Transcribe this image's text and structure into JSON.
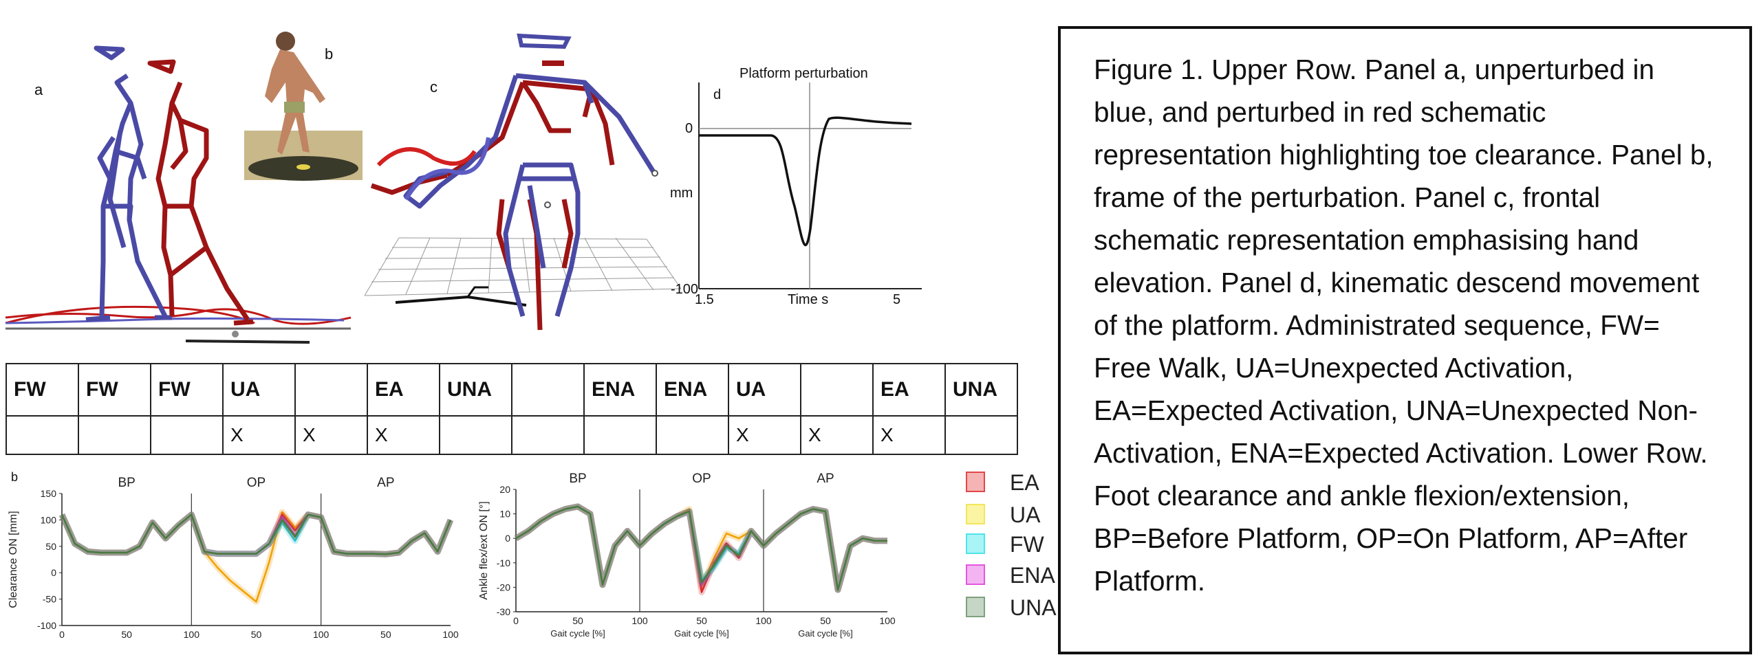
{
  "panels": {
    "a_label": "a",
    "b_label": "b",
    "c_label": "c",
    "d_label": "d",
    "lower_b_label": "b"
  },
  "platform_chart": {
    "title": "Platform perturbation",
    "ylabel": "mm",
    "xlabel": "Time s",
    "y_ticks": [
      "0",
      "-100"
    ],
    "x_ticks": [
      "1.5",
      "5"
    ]
  },
  "sequence_table": {
    "headers": [
      "FW",
      "FW",
      "FW",
      "UA",
      "",
      "EA",
      "UNA",
      "",
      "ENA",
      "ENA",
      "UA",
      "",
      "EA",
      "UNA"
    ],
    "marks": [
      "",
      "",
      "",
      "X",
      "X",
      "X",
      "",
      "",
      "",
      "",
      "X",
      "X",
      "X",
      ""
    ]
  },
  "chart_data": [
    {
      "type": "line",
      "title": "",
      "xlabel": "",
      "ylabel": "Clearance ON [mm]",
      "phases": [
        "BP",
        "OP",
        "AP"
      ],
      "phase_x_ticks": [
        [
          "0",
          "50",
          "100"
        ],
        [
          "50",
          "100"
        ],
        [
          "50",
          "100"
        ]
      ],
      "y_ticks": [
        "150",
        "100",
        "50",
        "0",
        "-50",
        "-100"
      ],
      "ylim": [
        -100,
        150
      ],
      "x": [
        0,
        10,
        20,
        30,
        40,
        50,
        60,
        70,
        80,
        90,
        100,
        110,
        120,
        130,
        140,
        150,
        160,
        170,
        180,
        190,
        200,
        210,
        220,
        230,
        240,
        250,
        260,
        270,
        280,
        290,
        300
      ],
      "series": [
        {
          "name": "EA",
          "values": [
            110,
            55,
            40,
            38,
            38,
            38,
            50,
            95,
            65,
            90,
            110,
            40,
            36,
            36,
            36,
            36,
            55,
            110,
            80,
            110,
            105,
            40,
            36,
            36,
            36,
            35,
            38,
            60,
            75,
            40,
            100
          ]
        },
        {
          "name": "UA",
          "values": [
            110,
            55,
            40,
            38,
            38,
            38,
            50,
            95,
            65,
            90,
            110,
            40,
            10,
            -15,
            -35,
            -55,
            20,
            115,
            85,
            110,
            105,
            40,
            36,
            36,
            36,
            35,
            38,
            60,
            75,
            40,
            100
          ]
        },
        {
          "name": "FW",
          "values": [
            110,
            55,
            40,
            38,
            38,
            38,
            50,
            95,
            65,
            90,
            110,
            40,
            36,
            36,
            36,
            36,
            55,
            95,
            60,
            110,
            105,
            40,
            36,
            36,
            36,
            35,
            38,
            60,
            75,
            40,
            100
          ]
        },
        {
          "name": "ENA",
          "values": [
            110,
            55,
            40,
            38,
            38,
            38,
            50,
            95,
            65,
            90,
            110,
            40,
            36,
            36,
            36,
            36,
            55,
            105,
            70,
            110,
            105,
            40,
            36,
            36,
            36,
            35,
            38,
            60,
            75,
            40,
            100
          ]
        },
        {
          "name": "UNA",
          "values": [
            110,
            55,
            40,
            38,
            38,
            38,
            50,
            95,
            65,
            90,
            110,
            40,
            36,
            36,
            36,
            36,
            55,
            100,
            68,
            110,
            105,
            40,
            36,
            36,
            36,
            35,
            38,
            60,
            75,
            40,
            100
          ]
        }
      ]
    },
    {
      "type": "line",
      "title": "",
      "xlabel": "Gait cycle [%]",
      "ylabel": "Ankle flex/ext ON [°]",
      "phases": [
        "BP",
        "OP",
        "AP"
      ],
      "phase_x_ticks": [
        [
          "0",
          "50",
          "100"
        ],
        [
          "50",
          "100"
        ],
        [
          "50",
          "100"
        ]
      ],
      "y_ticks": [
        "20",
        "10",
        "0",
        "-10",
        "-20",
        "-30"
      ],
      "ylim": [
        -30,
        20
      ],
      "x": [
        0,
        10,
        20,
        30,
        40,
        50,
        60,
        70,
        80,
        90,
        100,
        110,
        120,
        130,
        140,
        150,
        160,
        170,
        180,
        190,
        200,
        210,
        220,
        230,
        240,
        250,
        260,
        270,
        280,
        290,
        300
      ],
      "series": [
        {
          "name": "EA",
          "values": [
            0,
            3,
            7,
            10,
            12,
            13,
            10,
            -19,
            -3,
            3,
            -3,
            2,
            6,
            9,
            11,
            -22,
            -10,
            -2,
            -8,
            3,
            -3,
            2,
            6,
            10,
            12,
            11,
            -21,
            -3,
            0,
            -1,
            -1
          ]
        },
        {
          "name": "UA",
          "values": [
            0,
            3,
            7,
            10,
            12,
            13,
            10,
            -19,
            -3,
            3,
            -3,
            2,
            6,
            9,
            12,
            -20,
            -8,
            2,
            0,
            3,
            -3,
            2,
            6,
            10,
            12,
            11,
            -21,
            -3,
            0,
            -1,
            -1
          ]
        },
        {
          "name": "FW",
          "values": [
            0,
            3,
            7,
            10,
            12,
            13,
            10,
            -19,
            -3,
            3,
            -3,
            2,
            6,
            9,
            11,
            -17,
            -12,
            -4,
            -6,
            3,
            -3,
            2,
            6,
            10,
            12,
            11,
            -21,
            -3,
            0,
            -1,
            -1
          ]
        },
        {
          "name": "ENA",
          "values": [
            0,
            3,
            7,
            10,
            12,
            13,
            10,
            -19,
            -3,
            3,
            -3,
            2,
            6,
            9,
            11,
            -19,
            -11,
            -3,
            -7,
            3,
            -3,
            2,
            6,
            10,
            12,
            11,
            -21,
            -3,
            0,
            -1,
            -1
          ]
        },
        {
          "name": "UNA",
          "values": [
            0,
            3,
            7,
            10,
            12,
            13,
            10,
            -19,
            -3,
            3,
            -3,
            2,
            6,
            9,
            11,
            -18,
            -11,
            -3,
            -7,
            3,
            -3,
            2,
            6,
            10,
            12,
            11,
            -21,
            -3,
            0,
            -1,
            -1
          ]
        }
      ]
    }
  ],
  "legend": [
    {
      "label": "EA",
      "fill": "#f6b3b3",
      "stroke": "#e04848"
    },
    {
      "label": "UA",
      "fill": "#fbf5a3",
      "stroke": "#f2e65c"
    },
    {
      "label": "FW",
      "fill": "#a8f4f6",
      "stroke": "#4fe4ea"
    },
    {
      "label": "ENA",
      "fill": "#f3b4f1",
      "stroke": "#e356df"
    },
    {
      "label": "UNA",
      "fill": "#c6d6c6",
      "stroke": "#7fa07f"
    }
  ],
  "line_colors": {
    "EA": "#d8262a",
    "UA": "#f2a000",
    "FW": "#28c6d6",
    "ENA": "#c83cc4",
    "UNA": "#4c7a3c"
  },
  "caption": "Figure 1. Upper Row. Panel a, unperturbed in blue, and perturbed in red schematic representation highlighting toe clearance. Panel b, frame of the perturbation. Panel c, frontal schematic representation emphasising hand elevation. Panel d, kinematic descend movement of the platform. Administrated sequence, FW= Free Walk, UA=Unexpected Activation, EA=Expected Activation, UNA=Unexpected Non-Activation, ENA=Expected Activation. Lower Row. Foot clearance and ankle flexion/extension, BP=Before Platform, OP=On Platform, AP=After Platform."
}
